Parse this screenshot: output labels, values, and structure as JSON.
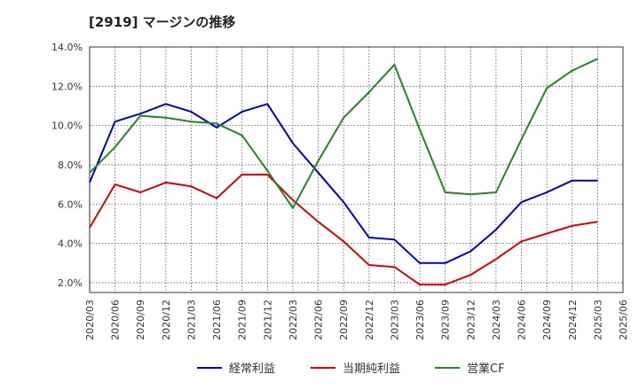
{
  "chart_data": {
    "type": "line",
    "title": "[2919]  マージンの推移",
    "xlabel": "",
    "ylabel": "",
    "categories": [
      "2020/03",
      "2020/06",
      "2020/09",
      "2020/12",
      "2021/03",
      "2021/06",
      "2021/09",
      "2021/12",
      "2022/03",
      "2022/06",
      "2022/09",
      "2022/12",
      "2023/03",
      "2023/06",
      "2023/09",
      "2023/12",
      "2024/03",
      "2024/06",
      "2024/09",
      "2024/12",
      "2025/03",
      "2025/06"
    ],
    "y_ticks": [
      "2.0%",
      "4.0%",
      "6.0%",
      "8.0%",
      "10.0%",
      "12.0%",
      "14.0%"
    ],
    "ylim": [
      1.5,
      14.0
    ],
    "grid": true,
    "legend_position": "bottom",
    "series": [
      {
        "name": "経常利益",
        "color": "#0000cc",
        "values": [
          7.1,
          10.2,
          10.6,
          11.1,
          10.7,
          9.9,
          10.7,
          11.1,
          9.1,
          7.6,
          6.1,
          4.3,
          4.2,
          3.0,
          3.0,
          3.6,
          4.7,
          6.1,
          6.6,
          7.2,
          7.2,
          null
        ]
      },
      {
        "name": "当期純利益",
        "color": "#dd0000",
        "values": [
          4.8,
          7.0,
          6.6,
          7.1,
          6.9,
          6.3,
          7.5,
          7.5,
          6.2,
          5.1,
          4.1,
          2.9,
          2.8,
          1.9,
          1.9,
          2.4,
          3.2,
          4.1,
          4.5,
          4.9,
          5.1,
          null
        ]
      },
      {
        "name": "営業CF",
        "color": "#228822",
        "values": [
          7.6,
          8.9,
          10.5,
          10.4,
          10.2,
          10.1,
          9.5,
          7.7,
          5.8,
          8.2,
          10.4,
          11.7,
          13.1,
          9.8,
          6.6,
          6.5,
          6.6,
          9.3,
          11.9,
          12.8,
          13.4,
          null
        ]
      }
    ]
  }
}
